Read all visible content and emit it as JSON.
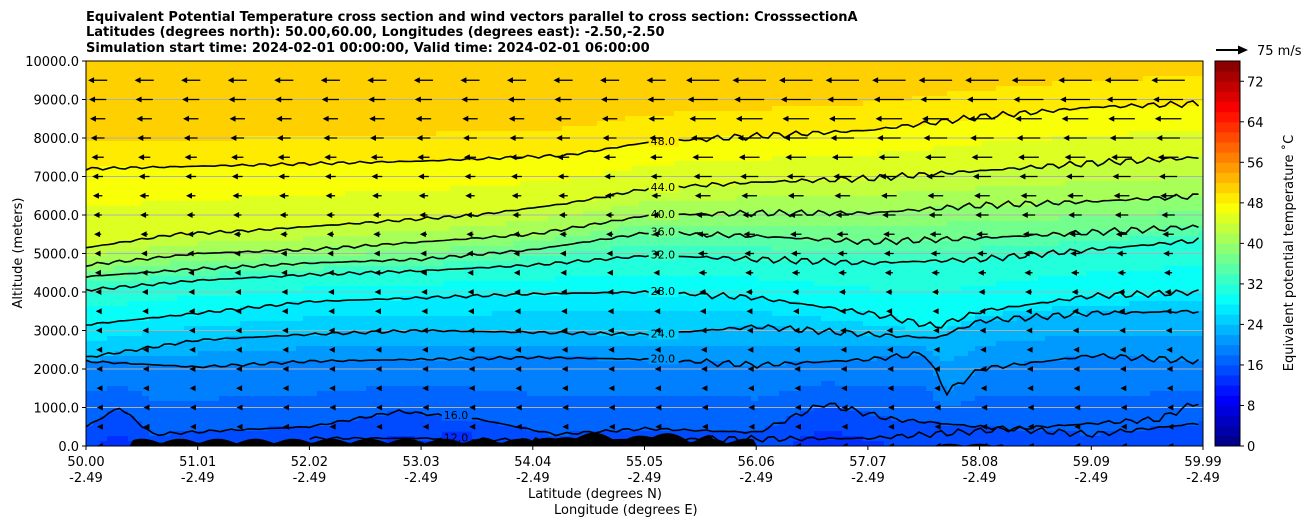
{
  "chart_data": {
    "type": "contourf",
    "title_lines": [
      "Equivalent Potential Temperature cross section and wind vectors parallel to cross section: CrosssectionA",
      "Latitudes (degrees north): 50.00,60.00, Longitudes (degrees east): -2.50,-2.50",
      "Simulation start time: 2024-02-01 00:00:00, Valid time: 2024-02-01 06:00:00"
    ],
    "ylabel": "Altitude (meters)",
    "xlabel_lat": "Latitude (degrees N)",
    "xlabel_lon": "Longitude (degrees E)",
    "ylim": [
      0,
      10000
    ],
    "xlim": [
      50.0,
      59.99
    ],
    "grid": "horizontal",
    "y_ticks": [
      "0.0",
      "1000.0",
      "2000.0",
      "3000.0",
      "4000.0",
      "5000.0",
      "6000.0",
      "7000.0",
      "8000.0",
      "9000.0",
      "10000.0"
    ],
    "x_ticks": [
      {
        "value": 50.0,
        "lat": "50.00",
        "lon": "-2.49"
      },
      {
        "value": 51.01,
        "lat": "51.01",
        "lon": "-2.49"
      },
      {
        "value": 52.02,
        "lat": "52.02",
        "lon": "-2.49"
      },
      {
        "value": 53.03,
        "lat": "53.03",
        "lon": "-2.49"
      },
      {
        "value": 54.04,
        "lat": "54.04",
        "lon": "-2.49"
      },
      {
        "value": 55.05,
        "lat": "55.05",
        "lon": "-2.49"
      },
      {
        "value": 56.06,
        "lat": "56.06",
        "lon": "-2.49"
      },
      {
        "value": 57.07,
        "lat": "57.07",
        "lon": "-2.49"
      },
      {
        "value": 58.08,
        "lat": "58.08",
        "lon": "-2.49"
      },
      {
        "value": 59.09,
        "lat": "59.09",
        "lon": "-2.49"
      },
      {
        "value": 59.99,
        "lat": "59.99",
        "lon": "-2.49"
      }
    ],
    "colorbar": {
      "label": "Equivalent potential temperature $^\\circ$C",
      "label_display": "Equivalent potential temperature ˚C",
      "min": 0,
      "max": 76,
      "step": 2,
      "ticks": [
        "0",
        "8",
        "16",
        "24",
        "32",
        "40",
        "48",
        "56",
        "64",
        "72"
      ]
    },
    "quiver_key": {
      "label": "75 m/s"
    },
    "contours": [
      {
        "level": 48,
        "label": "48.0",
        "points": [
          [
            50.0,
            7200
          ],
          [
            51.5,
            7300
          ],
          [
            53.0,
            7400
          ],
          [
            54.3,
            7550
          ],
          [
            55.05,
            7900
          ],
          [
            56.0,
            8050
          ],
          [
            57.0,
            8200
          ],
          [
            58.0,
            8550
          ],
          [
            59.0,
            8800
          ],
          [
            59.99,
            8900
          ]
        ]
      },
      {
        "level": 44,
        "label": "44.0",
        "points": [
          [
            50.0,
            5150
          ],
          [
            50.8,
            5500
          ],
          [
            51.5,
            5600
          ],
          [
            52.5,
            5800
          ],
          [
            53.5,
            6000
          ],
          [
            54.3,
            6300
          ],
          [
            55.05,
            6700
          ],
          [
            56.0,
            6850
          ],
          [
            57.0,
            6950
          ],
          [
            58.0,
            7150
          ],
          [
            59.0,
            7350
          ],
          [
            59.99,
            7500
          ]
        ]
      },
      {
        "level": 40,
        "label": "40.0",
        "points": [
          [
            50.0,
            4700
          ],
          [
            51.0,
            5000
          ],
          [
            52.0,
            5100
          ],
          [
            53.0,
            5300
          ],
          [
            54.0,
            5500
          ],
          [
            55.05,
            6000
          ],
          [
            56.0,
            6050
          ],
          [
            57.0,
            6050
          ],
          [
            58.0,
            6250
          ],
          [
            59.0,
            6350
          ],
          [
            59.99,
            6500
          ]
        ]
      },
      {
        "level": 36,
        "label": "36.0",
        "points": [
          [
            50.0,
            4400
          ],
          [
            51.0,
            4600
          ],
          [
            52.0,
            4750
          ],
          [
            53.0,
            4850
          ],
          [
            54.0,
            5100
          ],
          [
            55.05,
            5550
          ],
          [
            56.0,
            5450
          ],
          [
            57.0,
            5300
          ],
          [
            58.0,
            5400
          ],
          [
            59.0,
            5550
          ],
          [
            59.99,
            5700
          ]
        ]
      },
      {
        "level": 32,
        "label": "32.0",
        "points": [
          [
            50.0,
            4050
          ],
          [
            51.0,
            4300
          ],
          [
            52.0,
            4450
          ],
          [
            53.0,
            4550
          ],
          [
            54.0,
            4700
          ],
          [
            55.05,
            4950
          ],
          [
            56.0,
            4850
          ],
          [
            57.0,
            4750
          ],
          [
            58.0,
            4850
          ],
          [
            59.0,
            5100
          ],
          [
            59.99,
            5350
          ]
        ]
      },
      {
        "level": 28,
        "label": "28.0",
        "points": [
          [
            50.0,
            3150
          ],
          [
            51.0,
            3450
          ],
          [
            52.0,
            3750
          ],
          [
            53.0,
            3850
          ],
          [
            54.0,
            3950
          ],
          [
            55.05,
            4000
          ],
          [
            56.0,
            3850
          ],
          [
            57.0,
            3450
          ],
          [
            57.6,
            3100
          ],
          [
            58.0,
            3500
          ],
          [
            59.0,
            3900
          ],
          [
            59.99,
            4000
          ]
        ]
      },
      {
        "level": 24,
        "label": "24.0",
        "points": [
          [
            50.0,
            2300
          ],
          [
            51.0,
            2750
          ],
          [
            52.0,
            2900
          ],
          [
            53.0,
            3000
          ],
          [
            54.0,
            2950
          ],
          [
            55.05,
            2900
          ],
          [
            56.0,
            3100
          ],
          [
            57.0,
            2900
          ],
          [
            57.6,
            2800
          ],
          [
            58.0,
            3250
          ],
          [
            59.0,
            3450
          ],
          [
            59.99,
            3500
          ]
        ]
      },
      {
        "level": 20,
        "label": "20.0",
        "points": [
          [
            50.0,
            2200
          ],
          [
            51.0,
            2050
          ],
          [
            52.0,
            2200
          ],
          [
            53.0,
            2250
          ],
          [
            54.0,
            2300
          ],
          [
            55.05,
            2250
          ],
          [
            56.0,
            2100
          ],
          [
            57.0,
            2250
          ],
          [
            57.5,
            2400
          ],
          [
            57.7,
            1400
          ],
          [
            58.0,
            2000
          ],
          [
            59.0,
            2350
          ],
          [
            59.99,
            2200
          ]
        ]
      },
      {
        "level": 16,
        "label": "16.0",
        "points": [
          [
            50.0,
            500
          ],
          [
            50.3,
            1000
          ],
          [
            50.6,
            300
          ],
          [
            51.2,
            400
          ],
          [
            52.0,
            500
          ],
          [
            52.8,
            900
          ],
          [
            53.5,
            700
          ],
          [
            54.2,
            300
          ],
          [
            55.0,
            450
          ],
          [
            56.0,
            350
          ],
          [
            56.6,
            1100
          ],
          [
            57.2,
            700
          ],
          [
            58.0,
            500
          ],
          [
            59.0,
            300
          ],
          [
            59.99,
            600
          ]
        ]
      },
      {
        "level": 12,
        "label": "12.0",
        "points": [
          [
            52.0,
            200
          ],
          [
            53.0,
            200
          ],
          [
            54.0,
            150
          ],
          [
            57.0,
            200
          ],
          [
            59.6,
            700
          ],
          [
            59.99,
            1200
          ]
        ]
      }
    ],
    "wind": {
      "direction": "toward decreasing latitude",
      "rows_m": [
        9500,
        9000,
        8500,
        8000,
        7500,
        7000,
        6500,
        6000,
        5500,
        5000,
        4500,
        4000,
        3500,
        3000,
        2500,
        2000,
        1500,
        1000,
        500,
        0
      ],
      "max_speed_top_ms": 30
    }
  }
}
